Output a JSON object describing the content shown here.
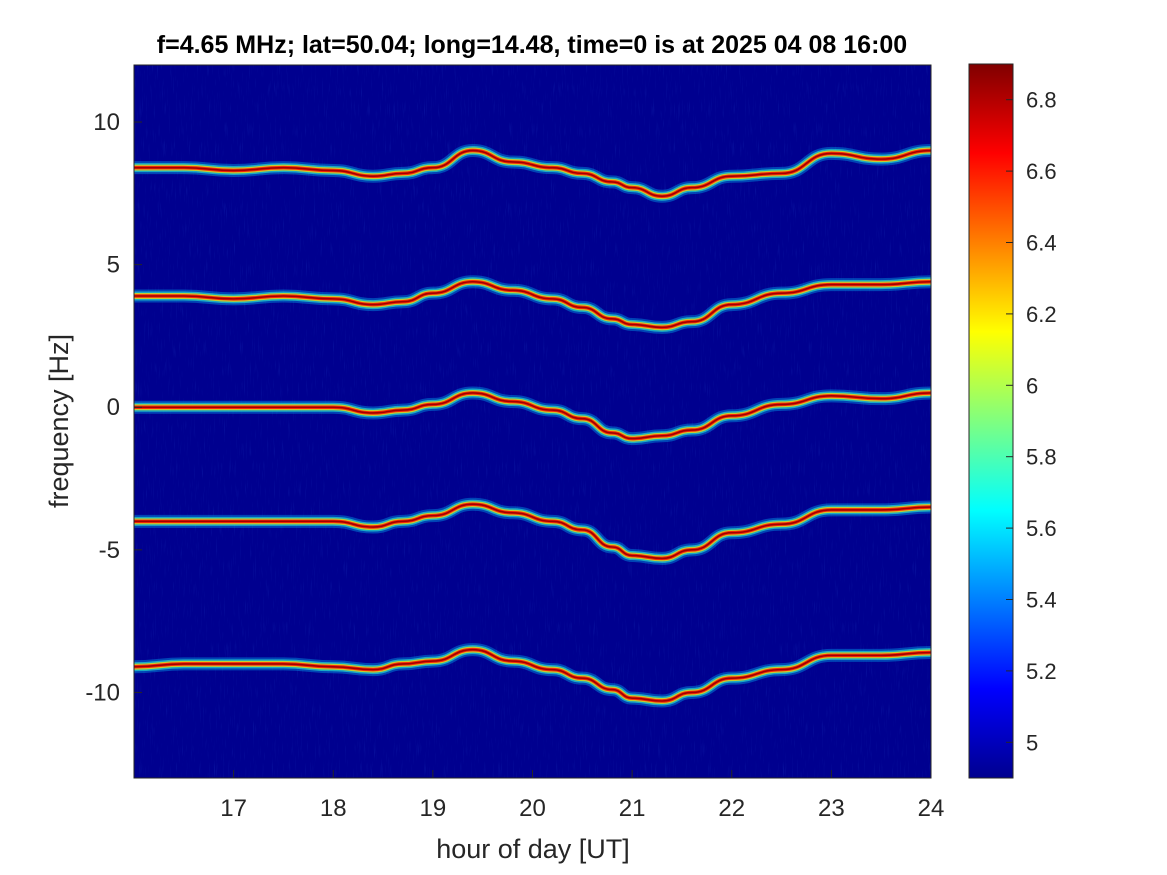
{
  "chart_data": {
    "type": "heatmap",
    "title": "f=4.65 MHz;  lat=50.04; long=14.48, time=0 is at 2025 04 08 16:00",
    "xlabel": "hour of day [UT]",
    "ylabel": "frequency [Hz]",
    "xlim": [
      16,
      24
    ],
    "ylim": [
      -13,
      12
    ],
    "xticks": [
      17,
      18,
      19,
      20,
      21,
      22,
      23,
      24
    ],
    "yticks": [
      10,
      5,
      0,
      -5,
      -10
    ],
    "colormap": "jet",
    "colorbar": {
      "lim": [
        4.9,
        6.9
      ],
      "ticks": [
        "6.8",
        "6.6",
        "6.4",
        "6.2",
        "6",
        "5.8",
        "5.6",
        "5.4",
        "5.2",
        "5"
      ]
    },
    "background_color": "#00008F",
    "traces": [
      {
        "base_freq": 8.3,
        "x": [
          16.0,
          16.5,
          17.0,
          17.5,
          18.0,
          18.4,
          18.7,
          19.0,
          19.4,
          19.8,
          20.2,
          20.5,
          20.8,
          21.0,
          21.3,
          21.6,
          22.0,
          22.5,
          23.0,
          23.5,
          24.0
        ],
        "y": [
          8.4,
          8.4,
          8.3,
          8.4,
          8.3,
          8.1,
          8.2,
          8.4,
          9.0,
          8.6,
          8.4,
          8.2,
          7.9,
          7.7,
          7.4,
          7.7,
          8.1,
          8.2,
          8.9,
          8.7,
          9.0
        ]
      },
      {
        "base_freq": 3.9,
        "x": [
          16.0,
          16.5,
          17.0,
          17.5,
          18.0,
          18.4,
          18.7,
          19.0,
          19.4,
          19.8,
          20.2,
          20.5,
          20.8,
          21.0,
          21.3,
          21.6,
          22.0,
          22.5,
          23.0,
          23.5,
          24.0
        ],
        "y": [
          3.9,
          3.9,
          3.8,
          3.9,
          3.8,
          3.6,
          3.7,
          4.0,
          4.4,
          4.1,
          3.8,
          3.5,
          3.1,
          2.9,
          2.8,
          3.0,
          3.6,
          4.0,
          4.3,
          4.3,
          4.4
        ]
      },
      {
        "base_freq": 0.0,
        "x": [
          16.0,
          16.5,
          17.0,
          17.5,
          18.0,
          18.4,
          18.7,
          19.0,
          19.4,
          19.8,
          20.2,
          20.5,
          20.8,
          21.0,
          21.3,
          21.6,
          22.0,
          22.5,
          23.0,
          23.5,
          24.0
        ],
        "y": [
          0.0,
          0.0,
          0.0,
          0.0,
          0.0,
          -0.2,
          -0.1,
          0.1,
          0.5,
          0.2,
          -0.1,
          -0.4,
          -0.9,
          -1.1,
          -1.0,
          -0.8,
          -0.3,
          0.1,
          0.4,
          0.3,
          0.5
        ]
      },
      {
        "base_freq": -4.0,
        "x": [
          16.0,
          16.5,
          17.0,
          17.5,
          18.0,
          18.4,
          18.7,
          19.0,
          19.4,
          19.8,
          20.2,
          20.5,
          20.8,
          21.0,
          21.3,
          21.6,
          22.0,
          22.5,
          23.0,
          23.5,
          24.0
        ],
        "y": [
          -4.0,
          -4.0,
          -4.0,
          -4.0,
          -4.0,
          -4.2,
          -4.0,
          -3.8,
          -3.4,
          -3.7,
          -4.0,
          -4.3,
          -4.9,
          -5.2,
          -5.3,
          -5.0,
          -4.4,
          -4.1,
          -3.6,
          -3.6,
          -3.5
        ]
      },
      {
        "base_freq": -9.1,
        "x": [
          16.0,
          16.5,
          17.0,
          17.5,
          18.0,
          18.4,
          18.7,
          19.0,
          19.4,
          19.8,
          20.2,
          20.5,
          20.8,
          21.0,
          21.3,
          21.6,
          22.0,
          22.5,
          23.0,
          23.5,
          24.0
        ],
        "y": [
          -9.1,
          -9.0,
          -9.0,
          -9.0,
          -9.1,
          -9.2,
          -9.0,
          -8.9,
          -8.5,
          -8.9,
          -9.2,
          -9.5,
          -9.9,
          -10.2,
          -10.3,
          -10.0,
          -9.5,
          -9.2,
          -8.7,
          -8.7,
          -8.6
        ]
      }
    ]
  }
}
